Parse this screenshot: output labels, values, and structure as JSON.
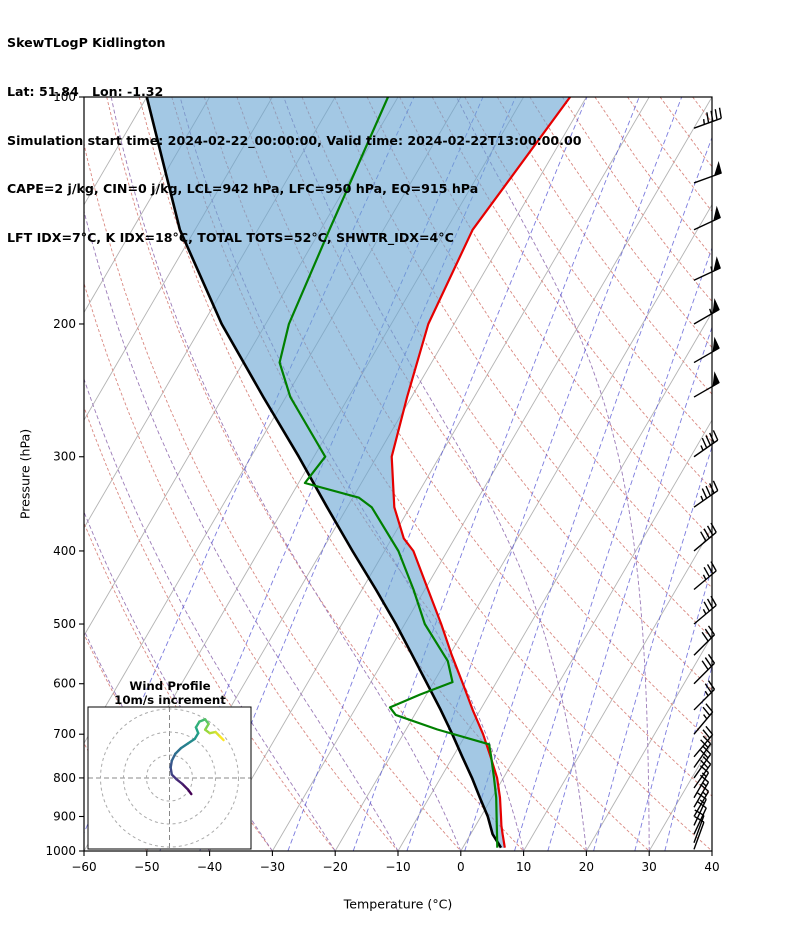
{
  "header": {
    "line1": "SkewTLogP Kidlington",
    "line2": "Lat: 51.84   Lon: -1.32",
    "line3": "Simulation start time: 2024-02-22_00:00:00, Valid time: 2024-02-22T13:00:00.00",
    "line4": "CAPE=2 j/kg, CIN=0 j/kg, LCL=942 hPa, LFC=950 hPa, EQ=915 hPa",
    "line5": "LFT IDX=7°C, K IDX=18°C, TOTAL TOTS=52°C, SHWTR_IDX=4°C"
  },
  "chart_data": {
    "type": "skewt-logp",
    "xlabel": "Temperature (°C)",
    "ylabel": "Pressure (hPa)",
    "x_range": [
      -60,
      40
    ],
    "x_ticks": [
      -60,
      -50,
      -40,
      -30,
      -20,
      -10,
      0,
      10,
      20,
      30,
      40
    ],
    "pressure_range": [
      100,
      1000
    ],
    "pressure_ticks": [
      100,
      200,
      300,
      400,
      500,
      600,
      700,
      800,
      900,
      1000
    ],
    "skew_deg_per_decade": 70,
    "isotherm_step": 10,
    "dry_adiabats_theta_c": {
      "from": -60,
      "to": 190,
      "step": 10
    },
    "moist_adiabats_thetaw_c": [
      -40,
      -30,
      -20,
      -10,
      0,
      10,
      20,
      30
    ],
    "mixing_ratio_g_kg": [
      0.01,
      0.05,
      0.1,
      0.4,
      1,
      2,
      4,
      7,
      10,
      16,
      24,
      32
    ],
    "colors": {
      "temperature": "#e60000",
      "dewpoint": "#008000",
      "parcel": "#000000",
      "shading": "#6ba7d4",
      "isotherm": "#b3b3b3",
      "dry_adiabat": "#d98880",
      "moist_adiabat": "#9b7bb8",
      "mixing_ratio": "#5b5bd6",
      "barb": "#000000"
    },
    "temperature_profile": [
      [
        990,
        6.7
      ],
      [
        950,
        5.1
      ],
      [
        925,
        4.1
      ],
      [
        900,
        3.2
      ],
      [
        850,
        1.3
      ],
      [
        800,
        -1.0
      ],
      [
        750,
        -4.0
      ],
      [
        700,
        -7.3
      ],
      [
        650,
        -11.2
      ],
      [
        600,
        -15.2
      ],
      [
        550,
        -19.6
      ],
      [
        500,
        -24.2
      ],
      [
        450,
        -29.5
      ],
      [
        400,
        -35.4
      ],
      [
        385,
        -38.1
      ],
      [
        350,
        -42.5
      ],
      [
        300,
        -47.6
      ],
      [
        250,
        -50.7
      ],
      [
        200,
        -54.1
      ],
      [
        150,
        -55.8
      ],
      [
        100,
        -52.6
      ]
    ],
    "dewpoint_profile": [
      [
        990,
        5.5
      ],
      [
        950,
        4.2
      ],
      [
        900,
        2.5
      ],
      [
        850,
        0.7
      ],
      [
        800,
        -1.5
      ],
      [
        750,
        -3.9
      ],
      [
        722,
        -5.4
      ],
      [
        690,
        -15.0
      ],
      [
        660,
        -23.0
      ],
      [
        645,
        -24.6
      ],
      [
        620,
        -21.0
      ],
      [
        597,
        -17.0
      ],
      [
        560,
        -19.7
      ],
      [
        500,
        -26.8
      ],
      [
        450,
        -31.8
      ],
      [
        400,
        -37.8
      ],
      [
        350,
        -46.1
      ],
      [
        340,
        -49.0
      ],
      [
        325,
        -59.0
      ],
      [
        300,
        -58.2
      ],
      [
        250,
        -69.3
      ],
      [
        225,
        -74.2
      ],
      [
        200,
        -76.3
      ],
      [
        150,
        -78.6
      ],
      [
        100,
        -81.6
      ]
    ],
    "parcel_profile": [
      [
        990,
        6.1
      ],
      [
        950,
        3.5
      ],
      [
        900,
        1.1
      ],
      [
        850,
        -1.9
      ],
      [
        800,
        -5.0
      ],
      [
        750,
        -8.5
      ],
      [
        700,
        -12.2
      ],
      [
        650,
        -16.3
      ],
      [
        600,
        -20.9
      ],
      [
        550,
        -25.9
      ],
      [
        500,
        -31.4
      ],
      [
        450,
        -37.8
      ],
      [
        400,
        -45.1
      ],
      [
        350,
        -53.2
      ],
      [
        300,
        -62.4
      ],
      [
        250,
        -73.6
      ],
      [
        200,
        -87.0
      ],
      [
        150,
        -102.4
      ],
      [
        100,
        -120.0
      ]
    ],
    "wind_barbs": [
      [
        110,
        250,
        45
      ],
      [
        130,
        250,
        50
      ],
      [
        150,
        245,
        50
      ],
      [
        175,
        245,
        55
      ],
      [
        200,
        240,
        55
      ],
      [
        225,
        240,
        50
      ],
      [
        250,
        240,
        50
      ],
      [
        300,
        235,
        45
      ],
      [
        350,
        235,
        45
      ],
      [
        400,
        230,
        40
      ],
      [
        450,
        230,
        35
      ],
      [
        500,
        230,
        35
      ],
      [
        550,
        225,
        30
      ],
      [
        600,
        225,
        30
      ],
      [
        650,
        225,
        25
      ],
      [
        700,
        220,
        25
      ],
      [
        750,
        220,
        20
      ],
      [
        775,
        215,
        20
      ],
      [
        800,
        215,
        20
      ],
      [
        825,
        215,
        20
      ],
      [
        850,
        210,
        15
      ],
      [
        875,
        210,
        15
      ],
      [
        900,
        210,
        15
      ],
      [
        925,
        205,
        15
      ],
      [
        950,
        205,
        10
      ],
      [
        975,
        200,
        10
      ],
      [
        995,
        200,
        10
      ]
    ],
    "hodograph": {
      "title": "Wind Profile",
      "subtitle": "10m/s increment",
      "ring_interval_ms": 10,
      "rings_ms": [
        10,
        20,
        30
      ],
      "trace_uv_ms": [
        [
          9.5,
          -7
        ],
        [
          8,
          -5
        ],
        [
          5.5,
          -2.5
        ],
        [
          3,
          -0.5
        ],
        [
          1,
          1.5
        ],
        [
          0.5,
          4.5
        ],
        [
          1,
          7.5
        ],
        [
          2.5,
          10.5
        ],
        [
          5,
          13
        ],
        [
          8,
          15
        ],
        [
          11,
          17
        ],
        [
          12.5,
          19.5
        ],
        [
          11.5,
          22
        ],
        [
          13,
          24.5
        ],
        [
          15.5,
          25.5
        ],
        [
          17,
          23.5
        ],
        [
          15.5,
          21
        ],
        [
          17.5,
          19.5
        ],
        [
          20,
          20
        ],
        [
          22,
          18
        ],
        [
          23.5,
          16.5
        ]
      ]
    }
  }
}
